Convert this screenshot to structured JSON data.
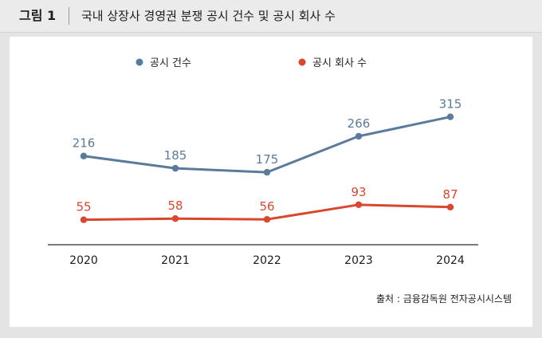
{
  "header": {
    "figure_label": "그림 1",
    "title": "국내 상장사 경영권 분쟁 공시 건수 및 공시 회사 수"
  },
  "source": "출처 : 금융감독원 전자공시시스템",
  "chart_data": {
    "type": "line",
    "title": "국내 상장사 경영권 분쟁 공시 건수 및 공시 회사 수",
    "categories": [
      "2020",
      "2021",
      "2022",
      "2023",
      "2024"
    ],
    "series": [
      {
        "name": "공시 건수",
        "values": [
          216,
          185,
          175,
          266,
          315
        ],
        "color": "#5b7b9c"
      },
      {
        "name": "공시 회사 수",
        "values": [
          55,
          58,
          56,
          93,
          87
        ],
        "color": "#d9472c"
      }
    ],
    "legend_position": "top-left",
    "grid": false,
    "ylim": [
      0,
      330
    ]
  }
}
